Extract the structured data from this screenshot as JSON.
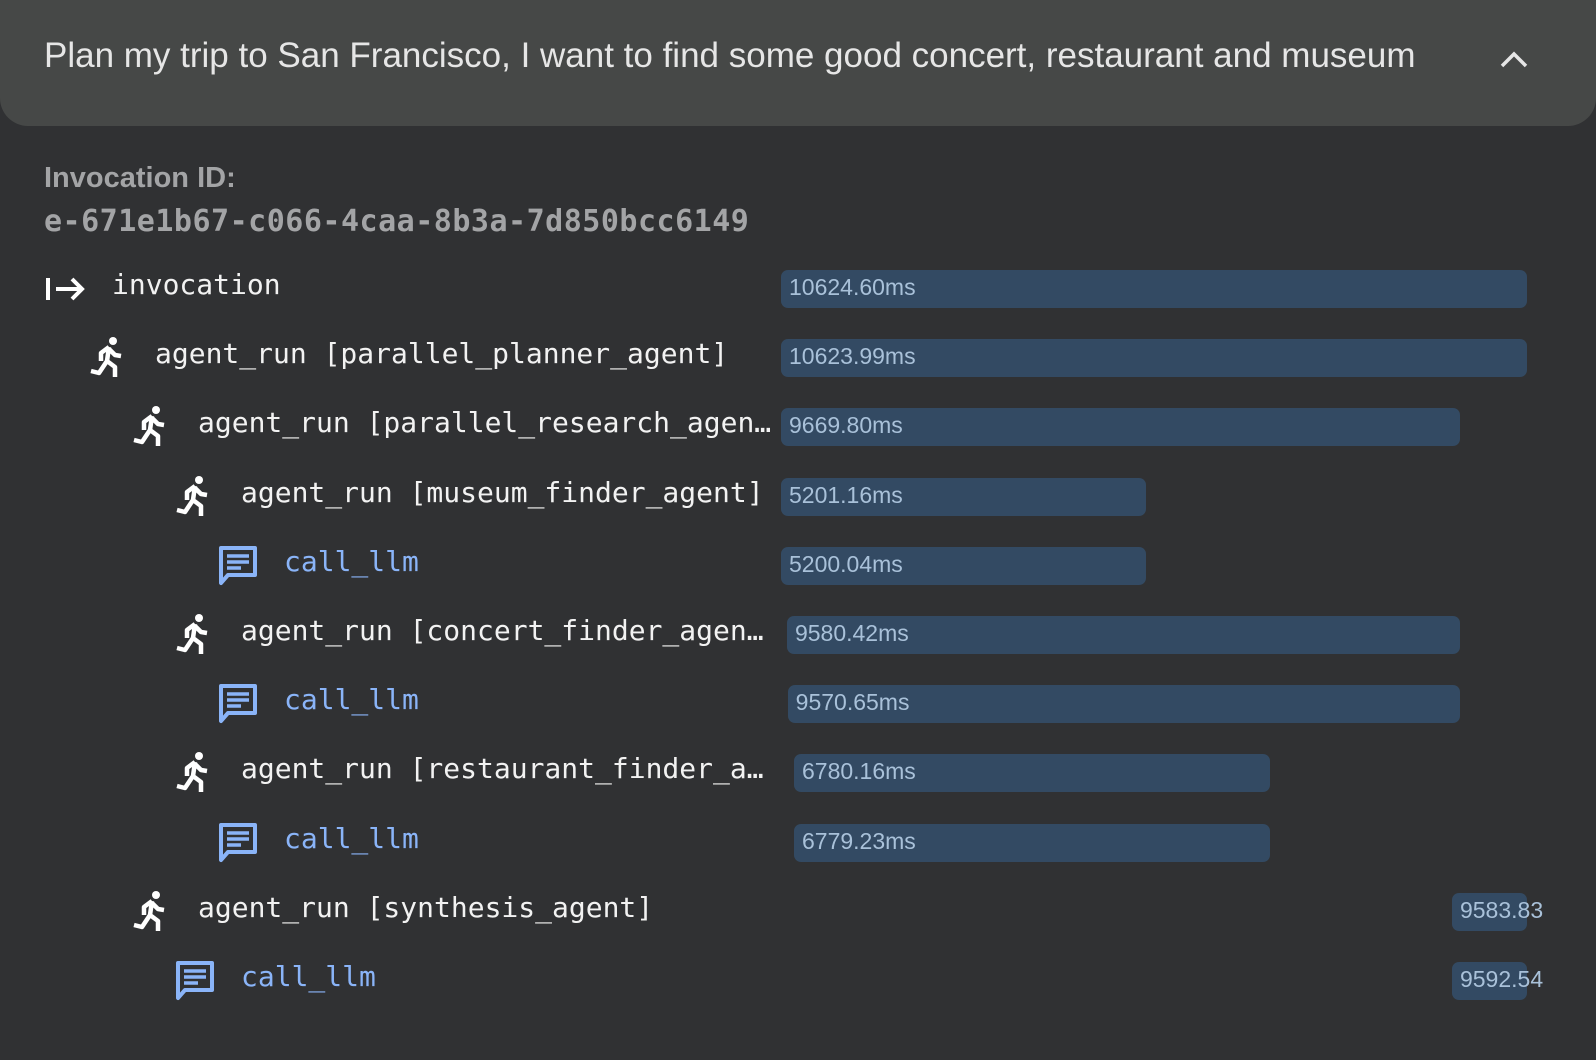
{
  "header": {
    "title": "Plan my trip to San Francisco, I want to find some good concert, restaurant and museum",
    "collapse_icon": "chevron-up-icon"
  },
  "invocation": {
    "label": "Invocation ID:",
    "id": "e-671e1b67-c066-4caa-8b3a-7d850bcc6149"
  },
  "colors": {
    "bar": "#334a63",
    "bar_text": "#a9c1d9",
    "llm": "#8ab4f8",
    "background": "#303133",
    "header": "#464847"
  },
  "total_ms": 10624.6,
  "spans": [
    {
      "icon": "invocation-arrow-icon",
      "label": "invocation",
      "duration": "10624.60ms",
      "duration_ms": 10624.6,
      "start_ms": 0,
      "depth": 0,
      "type": "invocation"
    },
    {
      "icon": "running-person-icon",
      "label": "agent_run [parallel_planner_agent]",
      "duration": "10623.99ms",
      "duration_ms": 10623.99,
      "start_ms": 0,
      "depth": 1,
      "type": "agent"
    },
    {
      "icon": "running-person-icon",
      "label": "agent_run [parallel_research_agen…",
      "duration": "9669.80ms",
      "duration_ms": 9669.8,
      "start_ms": 0,
      "depth": 2,
      "type": "agent"
    },
    {
      "icon": "running-person-icon",
      "label": "agent_run [museum_finder_agent]",
      "duration": "5201.16ms",
      "duration_ms": 5201.16,
      "start_ms": 0,
      "depth": 3,
      "type": "agent"
    },
    {
      "icon": "chat-message-icon",
      "label": "call_llm",
      "duration": "5200.04ms",
      "duration_ms": 5200.04,
      "start_ms": 0,
      "depth": 4,
      "type": "llm"
    },
    {
      "icon": "running-person-icon",
      "label": "agent_run [concert_finder_agen…",
      "duration": "9580.42ms",
      "duration_ms": 9580.42,
      "start_ms": 85,
      "depth": 3,
      "type": "agent"
    },
    {
      "icon": "chat-message-icon",
      "label": "call_llm",
      "duration": "9570.65ms",
      "duration_ms": 9570.65,
      "start_ms": 95,
      "depth": 4,
      "type": "llm"
    },
    {
      "icon": "running-person-icon",
      "label": "agent_run [restaurant_finder_a…",
      "duration": "6780.16ms",
      "duration_ms": 6780.16,
      "start_ms": 185,
      "depth": 3,
      "type": "agent"
    },
    {
      "icon": "chat-message-icon",
      "label": "call_llm",
      "duration": "6779.23ms",
      "duration_ms": 6779.23,
      "start_ms": 185,
      "depth": 4,
      "type": "llm"
    },
    {
      "icon": "running-person-icon",
      "label": "agent_run [synthesis_agent]",
      "duration": "9583.83",
      "duration_ms": 9583.83,
      "start_ms": 9556,
      "depth": 2,
      "type": "agent"
    },
    {
      "icon": "chat-message-icon",
      "label": "call_llm",
      "duration": "9592.54",
      "duration_ms": 9592.54,
      "start_ms": 9556,
      "depth": 3,
      "type": "llm"
    }
  ]
}
